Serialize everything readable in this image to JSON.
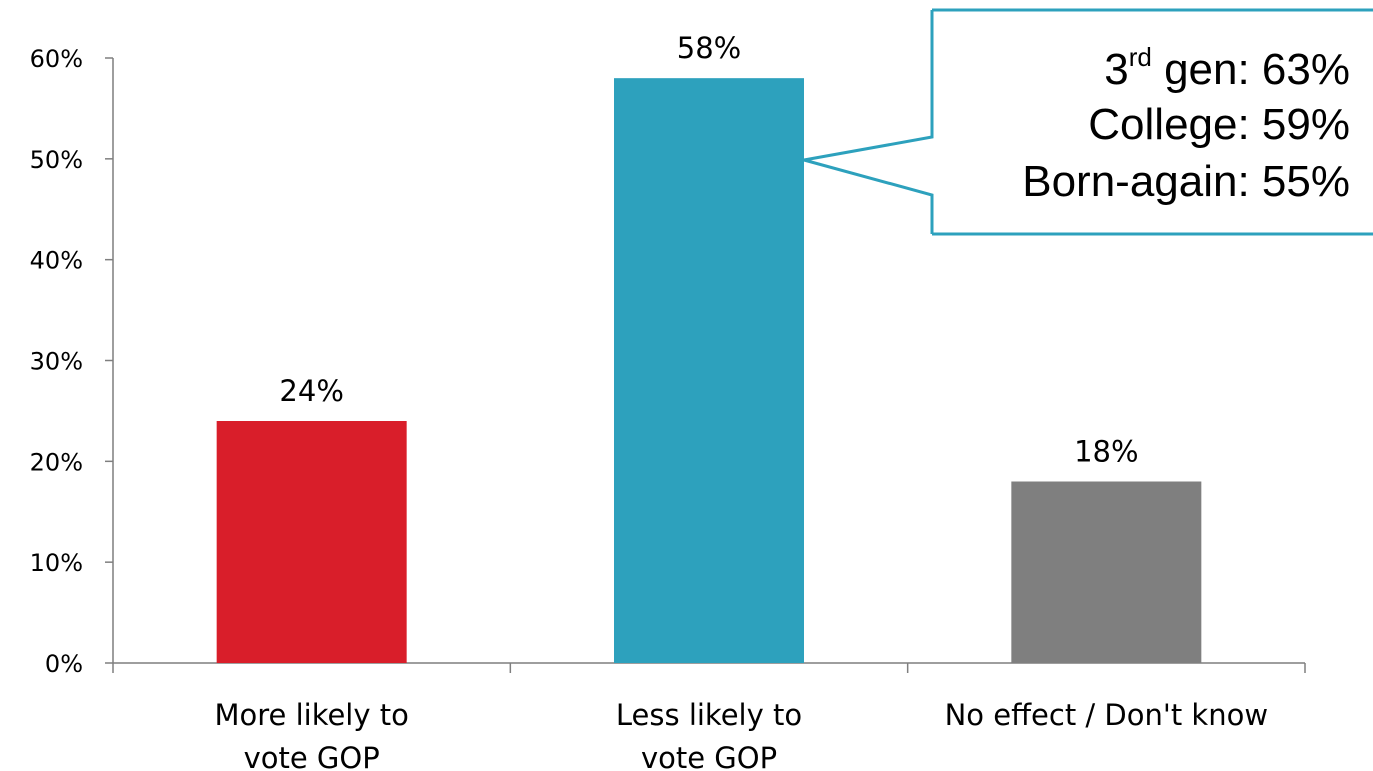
{
  "chart_data": {
    "type": "bar",
    "categories": [
      [
        "More likely to",
        "vote GOP"
      ],
      [
        "Less likely to",
        "vote GOP"
      ],
      [
        "No effect / Don't know"
      ]
    ],
    "values": [
      24,
      58,
      18
    ],
    "value_labels": [
      "24%",
      "58%",
      "18%"
    ],
    "colors": [
      "#d91e2a",
      "#2da1bd",
      "#7f7f7f"
    ],
    "ylim": [
      0,
      60
    ],
    "yticks": [
      0,
      10,
      20,
      30,
      40,
      50,
      60
    ],
    "ytick_labels": [
      "0%",
      "10%",
      "20%",
      "30%",
      "40%",
      "50%",
      "60%"
    ],
    "grid": false,
    "title": "",
    "xlabel": "",
    "ylabel": "",
    "callout": {
      "points_to": "Less likely to vote GOP",
      "border_color": "#2da1bd",
      "lines": [
        {
          "prefix": "3",
          "superscript": "rd",
          "text": " gen: 63%"
        },
        {
          "prefix": "",
          "superscript": "",
          "text": "College: 59%"
        },
        {
          "prefix": "",
          "superscript": "",
          "text": "Born-again: 55%"
        }
      ]
    }
  }
}
